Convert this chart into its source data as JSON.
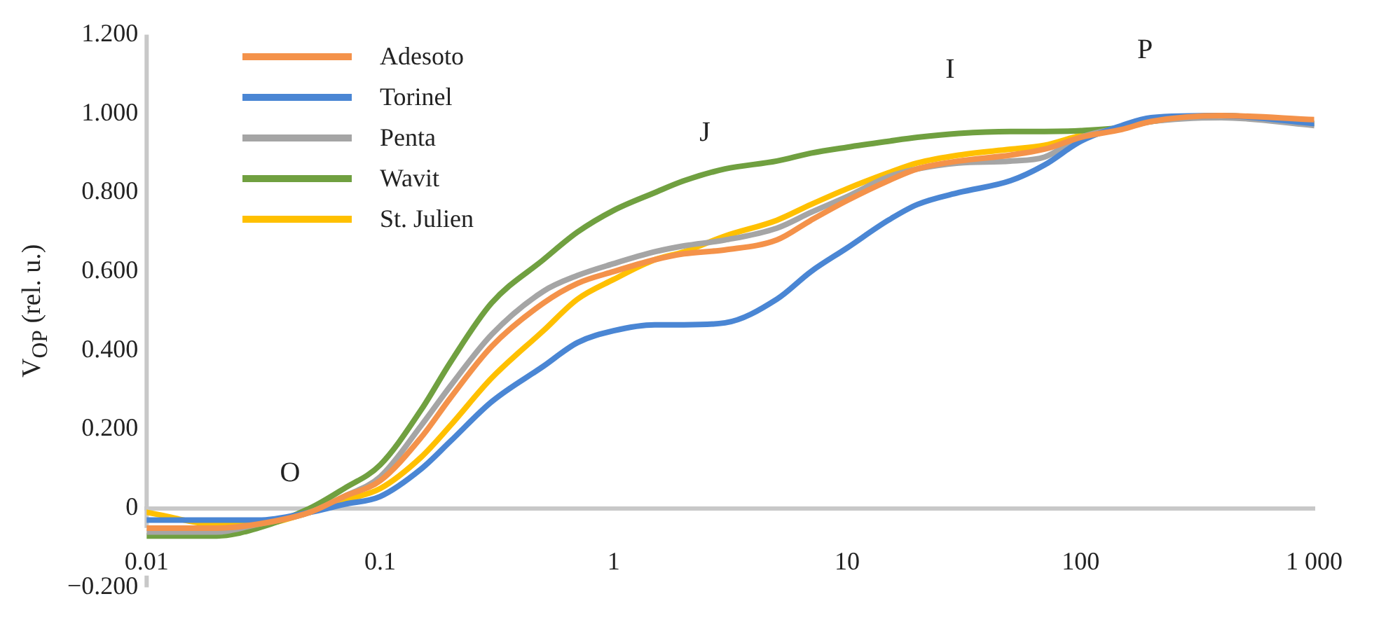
{
  "chart_data": {
    "type": "line",
    "ylabel": "V$_{OP}$ (rel. u.)",
    "x": [
      0.01,
      0.02,
      0.03,
      0.05,
      0.07,
      0.1,
      0.15,
      0.2,
      0.3,
      0.5,
      0.7,
      1,
      1.5,
      2,
      3,
      5,
      7,
      10,
      15,
      20,
      30,
      50,
      70,
      100,
      150,
      200,
      400,
      1000
    ],
    "series": [
      {
        "name": "Adesoto",
        "color": "#f4924a",
        "values": [
          -0.05,
          -0.05,
          -0.04,
          -0.01,
          0.03,
          0.07,
          0.18,
          0.28,
          0.41,
          0.52,
          0.57,
          0.6,
          0.63,
          0.645,
          0.655,
          0.68,
          0.73,
          0.78,
          0.83,
          0.86,
          0.88,
          0.895,
          0.91,
          0.94,
          0.96,
          0.98,
          0.995,
          0.985
        ]
      },
      {
        "name": "Torinel",
        "color": "#4a86d4",
        "values": [
          -0.03,
          -0.03,
          -0.03,
          -0.01,
          0.01,
          0.03,
          0.1,
          0.17,
          0.27,
          0.36,
          0.42,
          0.45,
          0.465,
          0.465,
          0.47,
          0.53,
          0.6,
          0.66,
          0.73,
          0.77,
          0.8,
          0.83,
          0.87,
          0.93,
          0.97,
          0.99,
          0.995,
          0.975
        ]
      },
      {
        "name": "Penta",
        "color": "#a5a5a5",
        "values": [
          -0.06,
          -0.06,
          -0.04,
          -0.01,
          0.03,
          0.08,
          0.21,
          0.31,
          0.44,
          0.55,
          0.59,
          0.62,
          0.65,
          0.665,
          0.68,
          0.71,
          0.75,
          0.79,
          0.84,
          0.86,
          0.875,
          0.88,
          0.89,
          0.94,
          0.965,
          0.98,
          0.99,
          0.97
        ]
      },
      {
        "name": "Wavit",
        "color": "#70a040",
        "values": [
          -0.07,
          -0.07,
          -0.05,
          0,
          0.05,
          0.11,
          0.25,
          0.37,
          0.52,
          0.63,
          0.7,
          0.755,
          0.8,
          0.83,
          0.86,
          0.88,
          0.9,
          0.915,
          0.93,
          0.94,
          0.95,
          0.955,
          0.955,
          0.957,
          0.965,
          0.98,
          0.995,
          0.975
        ]
      },
      {
        "name": "St. Julien",
        "color": "#ffc000",
        "values": [
          -0.01,
          -0.04,
          -0.04,
          -0.01,
          0.02,
          0.05,
          0.13,
          0.21,
          0.33,
          0.45,
          0.53,
          0.58,
          0.63,
          0.65,
          0.69,
          0.73,
          0.77,
          0.81,
          0.85,
          0.875,
          0.895,
          0.91,
          0.92,
          0.945,
          0.965,
          null,
          null,
          null
        ]
      }
    ],
    "log": "x",
    "xlim": [
      0.01,
      1000
    ],
    "xticks": [
      0.01,
      0.1,
      1,
      10,
      100,
      {
        "value": 1000,
        "label": "1 000"
      }
    ],
    "ylim": [
      -0.2,
      1.2
    ],
    "yticks": [
      {
        "value": -0.2,
        "label": "−0.200"
      },
      0,
      {
        "value": 0.2,
        "label": "0.200"
      },
      {
        "value": 0.4,
        "label": "0.400"
      },
      {
        "value": 0.6,
        "label": "0.600"
      },
      {
        "value": 0.8,
        "label": "0.800"
      },
      {
        "value": 1,
        "label": "1.000"
      },
      {
        "value": 1.2,
        "label": "1.200"
      }
    ],
    "grid": false,
    "legend": "top left",
    "marker": "none",
    "line_style": "solid",
    "annotations": [
      "O",
      "J",
      "I",
      "P"
    ]
  }
}
